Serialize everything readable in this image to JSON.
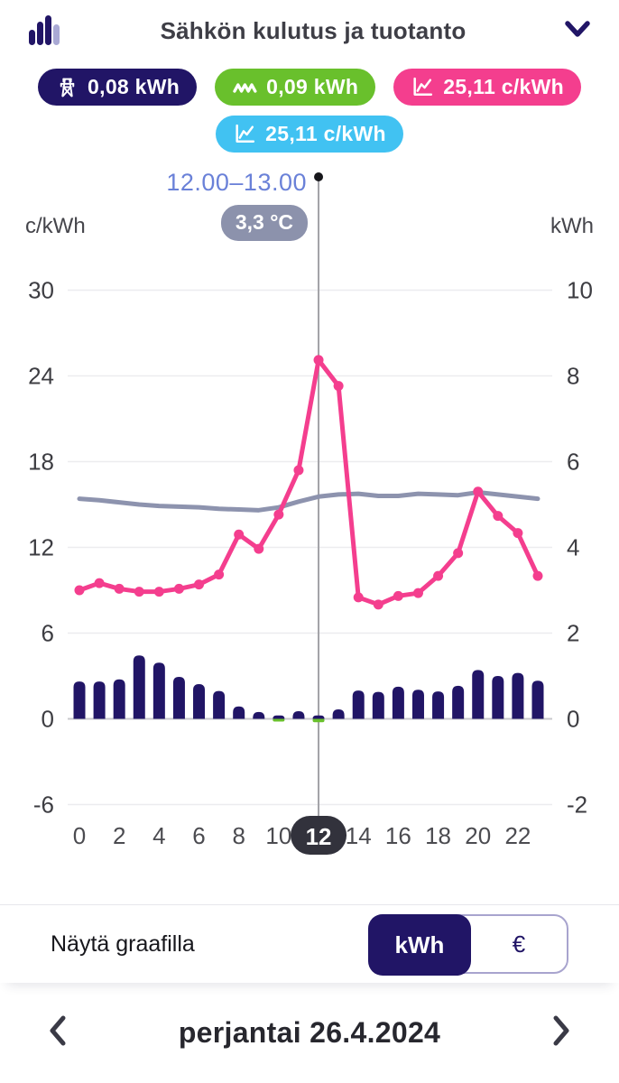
{
  "header": {
    "title": "Sähkön kulutus ja tuotanto",
    "icon": "bar-chart-icon",
    "collapse_icon": "chevron-down-icon"
  },
  "badges": [
    {
      "id": "consumption",
      "icon": "pylon-icon",
      "label": "0,08 kWh",
      "bg": "#211566"
    },
    {
      "id": "production",
      "icon": "zigzag-icon",
      "label": "0,09 kWh",
      "bg": "#69c02c"
    },
    {
      "id": "spot_price",
      "icon": "line-chart-icon",
      "label": "25,11 c/kWh",
      "bg": "#f43e8e"
    },
    {
      "id": "total_price",
      "icon": "line-chart-icon",
      "label": "25,11 c/kWh",
      "bg": "#41c2f2"
    }
  ],
  "tooltip": {
    "time_range": "12.00–13.00",
    "temperature": "3,3 °C"
  },
  "chart_data": {
    "type": "combo",
    "x": [
      0,
      1,
      2,
      3,
      4,
      5,
      6,
      7,
      8,
      9,
      10,
      11,
      12,
      13,
      14,
      15,
      16,
      17,
      18,
      19,
      20,
      21,
      22,
      23
    ],
    "x_ticks": [
      0,
      2,
      4,
      6,
      8,
      10,
      12,
      14,
      16,
      18,
      20,
      22
    ],
    "selected_hour": 12,
    "selected_hour_label": "12",
    "axes": {
      "left_unit": "c/kWh",
      "right_unit": "kWh",
      "left_ticks": [
        30,
        24,
        18,
        12,
        6,
        0,
        -6
      ],
      "right_ticks": [
        10,
        8,
        6,
        4,
        2,
        0,
        -2
      ],
      "grid": true
    },
    "series": {
      "consumption": {
        "type": "bar",
        "axis": "right",
        "unit": "kWh",
        "color": "#211566",
        "values": [
          0.87,
          0.87,
          0.92,
          1.48,
          1.31,
          0.98,
          0.81,
          0.65,
          0.29,
          0.16,
          0.08,
          0.18,
          0.08,
          0.22,
          0.66,
          0.63,
          0.75,
          0.68,
          0.64,
          0.77,
          1.14,
          1.0,
          1.07,
          0.89
        ],
        "selected_value": "0,08 kWh"
      },
      "production": {
        "type": "bar",
        "axis": "right",
        "unit": "kWh",
        "color": "#69c02c",
        "values": [
          0,
          0,
          0,
          0,
          0,
          0,
          0,
          0,
          0,
          0,
          0.05,
          0,
          0.09,
          0,
          0,
          0,
          0,
          0,
          0,
          0,
          0,
          0,
          0,
          0
        ],
        "selected_value": "0,09 kWh"
      },
      "spot_price": {
        "type": "line",
        "axis": "left",
        "unit": "c/kWh",
        "color": "#f43e8e",
        "markers": true,
        "values": [
          9.0,
          9.5,
          9.1,
          8.9,
          8.9,
          9.1,
          9.4,
          10.1,
          12.9,
          11.9,
          14.3,
          17.4,
          25.11,
          23.3,
          8.5,
          8.0,
          8.6,
          8.8,
          10.0,
          11.6,
          15.9,
          14.2,
          13.0,
          10.0
        ],
        "selected_value": "25,11 c/kWh"
      },
      "temperature": {
        "type": "line",
        "axis": "left",
        "color": "#8d93ae",
        "markers": false,
        "plotted_values_left_axis": [
          15.4,
          15.3,
          15.15,
          15.0,
          14.9,
          14.85,
          14.8,
          14.7,
          14.65,
          14.6,
          14.8,
          15.2,
          15.55,
          15.7,
          15.75,
          15.6,
          15.6,
          15.75,
          15.7,
          15.65,
          15.85,
          15.7,
          15.55,
          15.4
        ],
        "selected_value": "3,3 °C"
      }
    }
  },
  "footer": {
    "label": "Näytä graafilla",
    "options": [
      {
        "label": "kWh",
        "selected": true
      },
      {
        "label": "€",
        "selected": false
      }
    ]
  },
  "date_nav": {
    "date": "perjantai 26.4.2024",
    "prev_icon": "chevron-left-icon",
    "next_icon": "chevron-right-icon"
  }
}
